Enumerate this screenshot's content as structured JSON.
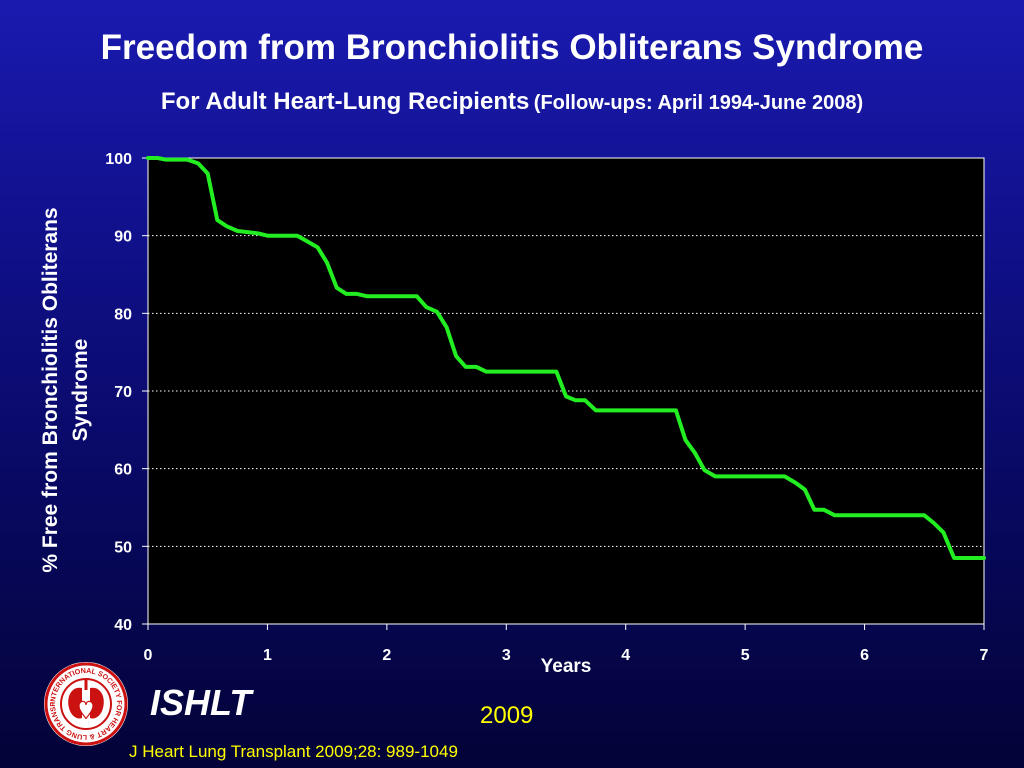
{
  "title": "Freedom from Bronchiolitis Obliterans Syndrome",
  "subtitle_main": "For Adult Heart-Lung Recipients",
  "subtitle_paren": "(Follow-ups: April 1994-June 2008)",
  "footer": {
    "brand": "ISHLT",
    "year": "2009",
    "citation": "J Heart Lung Transplant 2009;28: 989-1049",
    "logo_text": "INTERNATIONAL SOCIETY FOR HEART & LUNG TRANSPLANTATION"
  },
  "colors": {
    "background": "#10108a",
    "plot_background": "#000000",
    "line": "#22ee22",
    "footer_text": "#ffff00",
    "logo_red": "#cc1111"
  },
  "chart_data": {
    "type": "line",
    "title": "",
    "xlabel": "Years",
    "ylabel": "% Free from Bronchiolitis Obliterans Syndrome",
    "xlim": [
      0,
      7
    ],
    "ylim": [
      40,
      100
    ],
    "xticks": [
      0,
      1,
      2,
      3,
      4,
      5,
      6,
      7
    ],
    "yticks": [
      40,
      50,
      60,
      70,
      80,
      90,
      100
    ],
    "grid": "horizontal dotted",
    "series": [
      {
        "points": [
          [
            0,
            100
          ],
          [
            0.08,
            100
          ],
          [
            0.15,
            99.8
          ],
          [
            0.33,
            99.8
          ],
          [
            0.42,
            99.3
          ],
          [
            0.5,
            98
          ],
          [
            0.58,
            92
          ],
          [
            0.66,
            91.2
          ],
          [
            0.75,
            90.6
          ],
          [
            0.92,
            90.3
          ],
          [
            1.0,
            90
          ],
          [
            1.25,
            90
          ],
          [
            1.33,
            89.3
          ],
          [
            1.42,
            88.5
          ],
          [
            1.5,
            86.5
          ],
          [
            1.58,
            83.3
          ],
          [
            1.66,
            82.5
          ],
          [
            1.75,
            82.5
          ],
          [
            1.83,
            82.2
          ],
          [
            2.25,
            82.2
          ],
          [
            2.33,
            80.8
          ],
          [
            2.42,
            80.2
          ],
          [
            2.5,
            78.2
          ],
          [
            2.58,
            74.5
          ],
          [
            2.66,
            73.1
          ],
          [
            2.75,
            73.1
          ],
          [
            2.83,
            72.5
          ],
          [
            3.42,
            72.5
          ],
          [
            3.5,
            69.3
          ],
          [
            3.58,
            68.8
          ],
          [
            3.66,
            68.8
          ],
          [
            3.75,
            67.5
          ],
          [
            4.42,
            67.5
          ],
          [
            4.5,
            63.7
          ],
          [
            4.58,
            62
          ],
          [
            4.66,
            59.8
          ],
          [
            4.75,
            59
          ],
          [
            5.33,
            59
          ],
          [
            5.42,
            58.2
          ],
          [
            5.5,
            57.3
          ],
          [
            5.58,
            54.7
          ],
          [
            5.66,
            54.7
          ],
          [
            5.75,
            54
          ],
          [
            6.5,
            54
          ],
          [
            6.58,
            53
          ],
          [
            6.66,
            51.8
          ],
          [
            6.75,
            48.5
          ],
          [
            7.0,
            48.5
          ]
        ]
      }
    ]
  }
}
